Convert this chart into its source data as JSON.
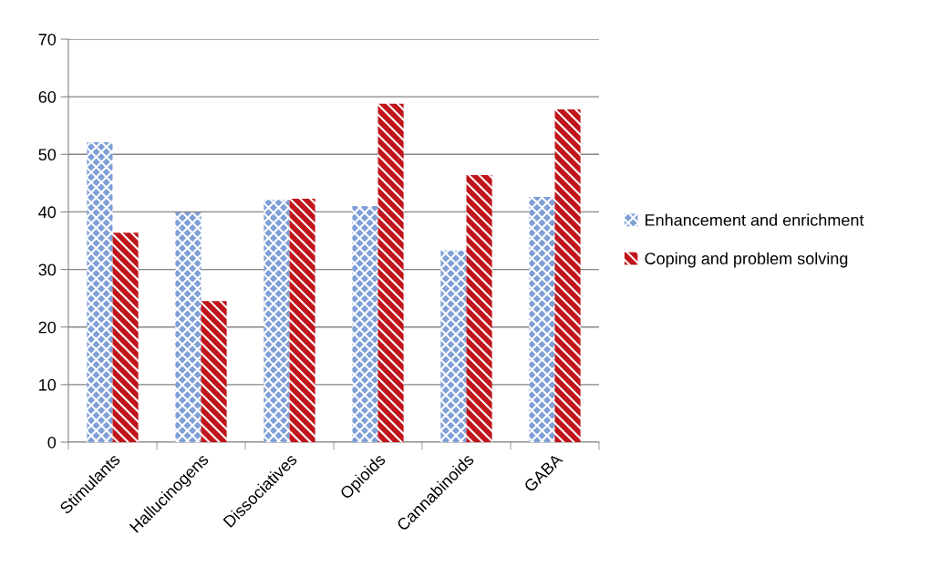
{
  "chart_data": {
    "type": "bar",
    "categories": [
      "Stimulants",
      "Hallucinogens",
      "Dissociatives",
      "Opioids",
      "Cannabinoids",
      "GABA"
    ],
    "series": [
      {
        "name": "Enhancement and enrichment",
        "color": "#7f9fd6",
        "values": [
          52.1,
          39.9,
          42.1,
          41.0,
          33.3,
          42.6
        ]
      },
      {
        "name": "Coping and problem solving",
        "color": "#c0151b",
        "values": [
          36.4,
          24.5,
          42.3,
          58.8,
          46.4,
          57.8
        ]
      }
    ],
    "ylim": [
      0,
      70
    ],
    "yticks": [
      0,
      10,
      20,
      30,
      40,
      50,
      60,
      70
    ],
    "grid": "y",
    "legend": "right"
  }
}
